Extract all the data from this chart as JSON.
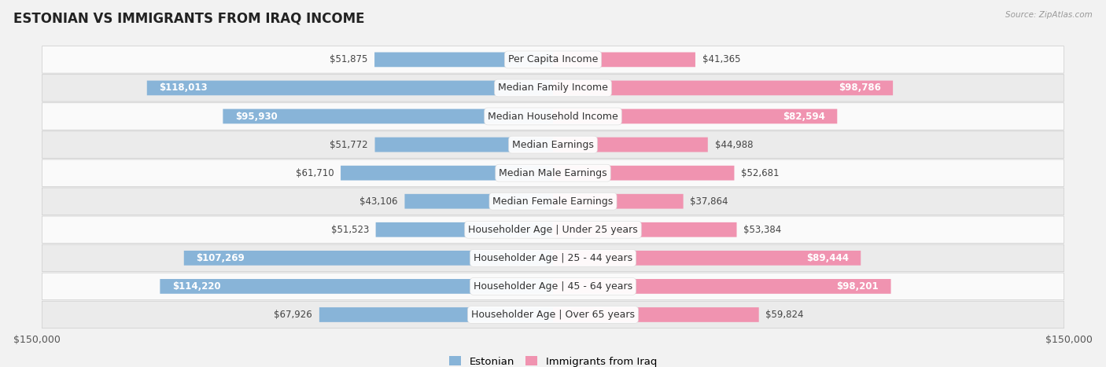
{
  "title": "Estonian vs Immigrants from Iraq Income",
  "source": "Source: ZipAtlas.com",
  "categories": [
    "Per Capita Income",
    "Median Family Income",
    "Median Household Income",
    "Median Earnings",
    "Median Male Earnings",
    "Median Female Earnings",
    "Householder Age | Under 25 years",
    "Householder Age | 25 - 44 years",
    "Householder Age | 45 - 64 years",
    "Householder Age | Over 65 years"
  ],
  "estonian_values": [
    51875,
    118013,
    95930,
    51772,
    61710,
    43106,
    51523,
    107269,
    114220,
    67926
  ],
  "iraq_values": [
    41365,
    98786,
    82594,
    44988,
    52681,
    37864,
    53384,
    89444,
    98201,
    59824
  ],
  "estonian_color": "#88b4d8",
  "iraq_color": "#f093b0",
  "max_value": 150000,
  "bar_height": 0.52,
  "bg_color": "#f2f2f2",
  "row_bg_light": "#fafafa",
  "row_bg_dark": "#ebebeb",
  "label_fontsize": 9,
  "title_fontsize": 12,
  "value_fontsize": 8.5,
  "legend_labels": [
    "Estonian",
    "Immigrants from Iraq"
  ],
  "value_threshold": 75000
}
